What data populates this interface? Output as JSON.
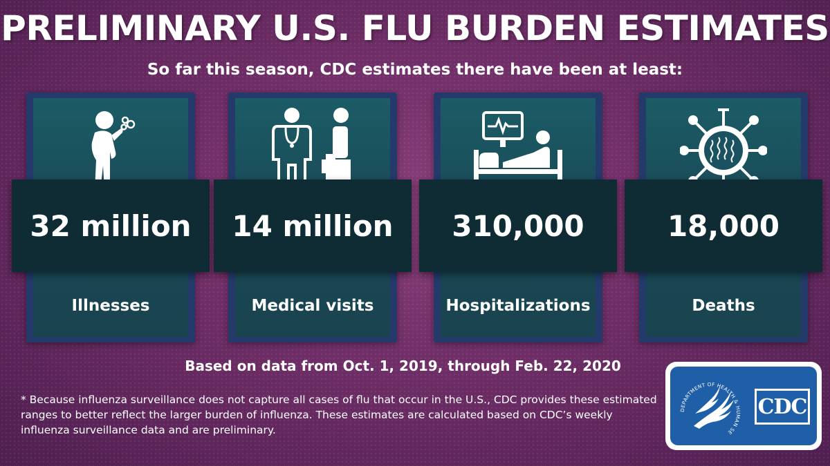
{
  "title": "PRELIMINARY U.S. FLU BURDEN ESTIMATES",
  "subtitle": "So far this season, CDC estimates there have been at least:",
  "cards": [
    {
      "value": "32 million",
      "label": "Illnesses",
      "icon": "coughing-person-icon"
    },
    {
      "value": "14 million",
      "label": "Medical visits",
      "icon": "doctor-patient-icon"
    },
    {
      "value": "310,000",
      "label": "Hospitalizations",
      "icon": "hospital-bed-icon"
    },
    {
      "value": "18,000",
      "label": "Deaths",
      "icon": "virus-icon"
    }
  ],
  "based_on": "Based on data from Oct. 1, 2019, through Feb. 22, 2020",
  "footnote": "* Because influenza surveillance does not capture all cases of flu that occur in the U.S., CDC provides these estimated ranges to better reflect the larger burden of influenza. These estimates are calculated based on CDC’s weekly influenza surveillance data and are preliminary.",
  "logo": {
    "cdc_text": "CDC",
    "hhs_seal_text": "DEPARTMENT OF HEALTH & HUMAN SERVICES USA"
  },
  "colors": {
    "background": "#6e2d66",
    "card_border": "#233a6a",
    "card_fill": "#1a4a57",
    "banner": "#0f2b34",
    "logo_blue": "#1f5fa8"
  }
}
